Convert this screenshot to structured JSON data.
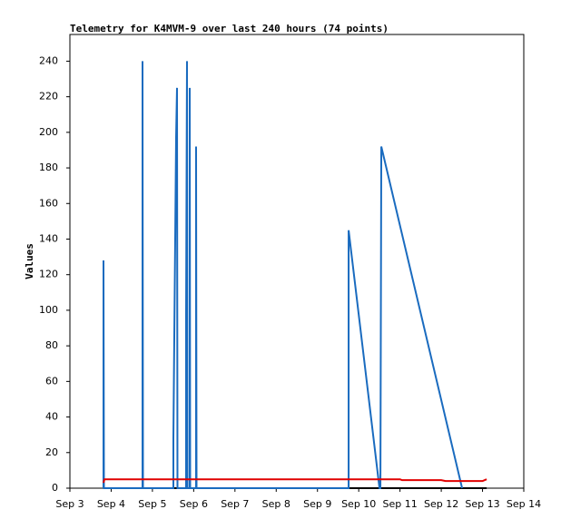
{
  "chart_data": {
    "type": "line",
    "title": "Telemetry for K4MVM-9 over last 240 hours (74 points)",
    "ylabel": "Values",
    "xlim": [
      3,
      14
    ],
    "xticks": [
      {
        "value": 3,
        "label": "Sep 3"
      },
      {
        "value": 4,
        "label": "Sep 4"
      },
      {
        "value": 5,
        "label": "Sep 5"
      },
      {
        "value": 6,
        "label": "Sep 6"
      },
      {
        "value": 7,
        "label": "Sep 7"
      },
      {
        "value": 8,
        "label": "Sep 8"
      },
      {
        "value": 9,
        "label": "Sep 9"
      },
      {
        "value": 10,
        "label": "Sep 10"
      },
      {
        "value": 11,
        "label": "Sep 11"
      },
      {
        "value": 12,
        "label": "Sep 12"
      },
      {
        "value": 13,
        "label": "Sep 13"
      },
      {
        "value": 14,
        "label": "Sep 14"
      }
    ],
    "ylim": [
      0,
      255
    ],
    "yticks": [
      0,
      20,
      40,
      60,
      80,
      100,
      120,
      140,
      160,
      180,
      200,
      220,
      240
    ],
    "series": [
      {
        "color": "#000000",
        "x": [
          3.814,
          13.1
        ],
        "values": [
          0,
          0
        ]
      },
      {
        "color": "#1a6bbf",
        "x": [
          3.814,
          3.814,
          3.825,
          4.76,
          4.76,
          4.771,
          5.508,
          5.508,
          5.53,
          5.552,
          5.574,
          5.596,
          5.607,
          5.816,
          5.816,
          5.838,
          5.849,
          5.904,
          5.904,
          5.915,
          6.058,
          6.058,
          6.069,
          9.755,
          9.755,
          10.503,
          10.525,
          10.547,
          12.505
        ],
        "values": [
          0,
          128,
          0,
          0,
          240,
          0,
          0,
          28,
          85,
          140,
          197,
          225,
          0,
          0,
          97,
          240,
          0,
          0,
          225,
          0,
          0,
          192,
          0,
          0,
          145,
          0,
          0,
          192,
          0
        ]
      },
      {
        "color": "#e00000",
        "x": [
          3.814,
          3.836,
          11.0,
          11.05,
          12.0,
          12.1,
          13.0,
          13.1
        ],
        "values": [
          3,
          5,
          5,
          4.5,
          4.5,
          4,
          4,
          5
        ]
      }
    ]
  }
}
